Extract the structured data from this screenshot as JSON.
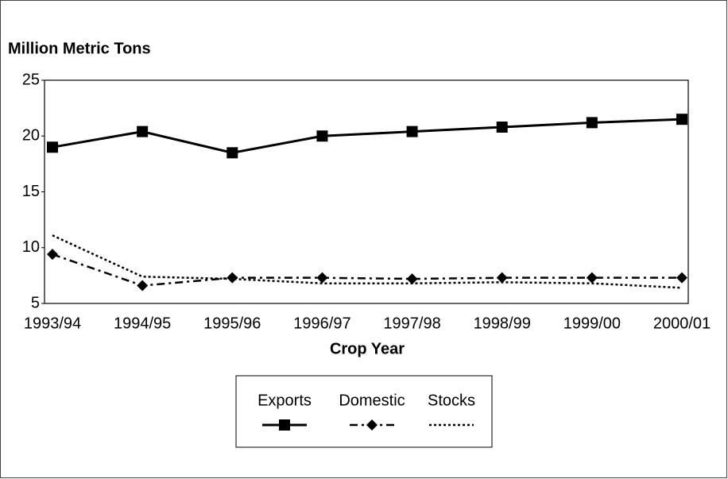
{
  "chart_data": {
    "type": "line",
    "title": "Million Metric Tons",
    "x_label": "Crop Year",
    "categories": [
      "1993/94",
      "1994/95",
      "1995/96",
      "1996/97",
      "1997/98",
      "1998/99",
      "1999/00",
      "2000/01"
    ],
    "series": [
      {
        "name": "Exports",
        "color": "#000000",
        "style": "solid",
        "marker": "square",
        "values": [
          19.0,
          20.4,
          18.5,
          20.0,
          20.4,
          20.8,
          21.2,
          21.5
        ]
      },
      {
        "name": "Domestic",
        "color": "#000000",
        "style": "dashdot",
        "marker": "diamond",
        "values": [
          9.4,
          6.6,
          7.3,
          7.3,
          7.2,
          7.3,
          7.3,
          7.3
        ]
      },
      {
        "name": "Stocks",
        "color": "#000000",
        "style": "dotted",
        "marker": "none",
        "values": [
          11.1,
          7.4,
          7.2,
          6.8,
          6.8,
          6.9,
          6.8,
          6.4
        ]
      }
    ],
    "ylim": [
      5,
      25
    ],
    "yticks": [
      5,
      10,
      15,
      20,
      25
    ],
    "grid": false,
    "legend": "bottom"
  }
}
